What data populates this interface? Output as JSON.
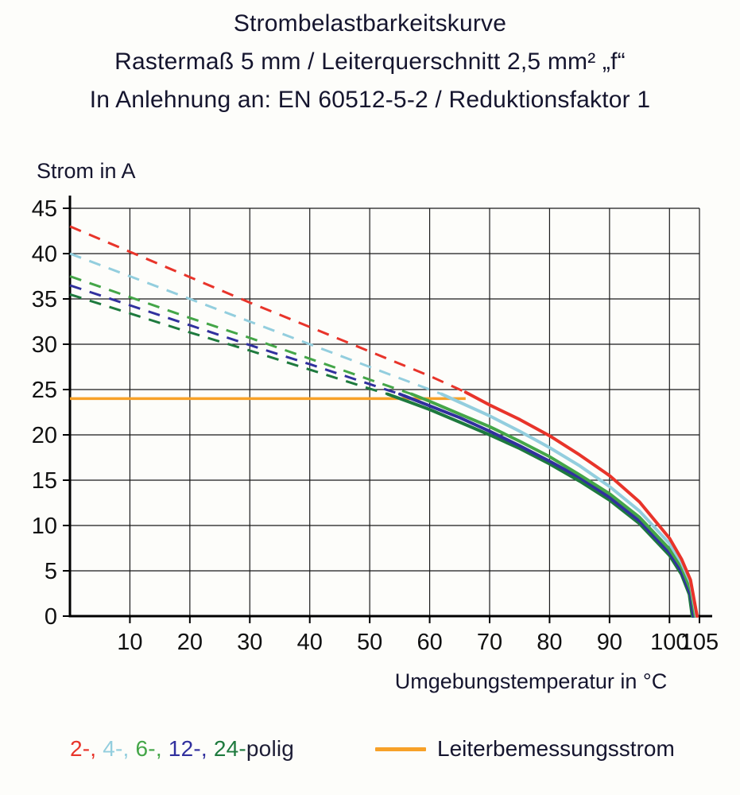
{
  "title": {
    "line1": "Strombelastbarkeitskurve",
    "line2": "Rastermaß 5 mm / Leiterquerschnitt 2,5 mm² „f“",
    "line3": "In Anlehnung an: EN 60512-5-2 / Reduktionsfaktor 1"
  },
  "chart_data": {
    "type": "line",
    "title": "Strombelastbarkeitskurve",
    "ylabel": "Strom in A",
    "xlabel": "Umgebungstemperatur in °C",
    "xlim": [
      0,
      105
    ],
    "ylim": [
      0,
      45
    ],
    "xticks": [
      10,
      20,
      30,
      40,
      50,
      60,
      70,
      80,
      90,
      100,
      105
    ],
    "yticks": [
      0,
      5,
      10,
      15,
      20,
      25,
      30,
      35,
      40,
      45
    ],
    "grid": true,
    "grid_color": "#1a1a1a",
    "axis_color": "#000000",
    "rated_current": {
      "label": "Leiterbemessungsstrom",
      "value": 24,
      "x_start": 0,
      "x_end": 66,
      "color": "#F7A128"
    },
    "dash_style_note": "curve portions above rated current are dashed, below are solid",
    "series": [
      {
        "name": "2-polig",
        "color": "#E8342A",
        "dashed": [
          [
            0,
            43
          ],
          [
            10,
            40.2
          ],
          [
            20,
            37.4
          ],
          [
            30,
            34.6
          ],
          [
            40,
            31.9
          ],
          [
            50,
            29.2
          ],
          [
            60,
            26.5
          ],
          [
            66,
            24.7
          ]
        ],
        "solid": [
          [
            66,
            24.7
          ],
          [
            70,
            23.3
          ],
          [
            75,
            21.7
          ],
          [
            80,
            19.9
          ],
          [
            85,
            17.8
          ],
          [
            90,
            15.5
          ],
          [
            95,
            12.6
          ],
          [
            100,
            8.6
          ],
          [
            102,
            6.3
          ],
          [
            103.5,
            4.0
          ],
          [
            104.6,
            0
          ]
        ]
      },
      {
        "name": "4-polig",
        "color": "#93CEDE",
        "dashed": [
          [
            0,
            40
          ],
          [
            10,
            37.5
          ],
          [
            20,
            35
          ],
          [
            30,
            32.5
          ],
          [
            40,
            30
          ],
          [
            50,
            27.5
          ],
          [
            60,
            25
          ],
          [
            62,
            24.5
          ]
        ],
        "solid": [
          [
            62,
            24.5
          ],
          [
            65,
            23.6
          ],
          [
            70,
            22.1
          ],
          [
            75,
            20.4
          ],
          [
            80,
            18.6
          ],
          [
            85,
            16.6
          ],
          [
            90,
            14.3
          ],
          [
            95,
            11.6
          ],
          [
            100,
            8.0
          ],
          [
            102,
            5.9
          ],
          [
            103.5,
            3.7
          ],
          [
            104.5,
            0
          ]
        ]
      },
      {
        "name": "6-polig",
        "color": "#44A648",
        "dashed": [
          [
            0,
            37.5
          ],
          [
            10,
            35.2
          ],
          [
            20,
            32.9
          ],
          [
            30,
            30.7
          ],
          [
            40,
            28.4
          ],
          [
            50,
            26.1
          ],
          [
            57,
            24.5
          ]
        ],
        "solid": [
          [
            57,
            24.5
          ],
          [
            60,
            23.7
          ],
          [
            65,
            22.3
          ],
          [
            70,
            20.9
          ],
          [
            75,
            19.3
          ],
          [
            80,
            17.6
          ],
          [
            85,
            15.6
          ],
          [
            90,
            13.5
          ],
          [
            95,
            10.9
          ],
          [
            100,
            7.4
          ],
          [
            102,
            5.4
          ],
          [
            103.6,
            2.8
          ],
          [
            104.3,
            0
          ]
        ]
      },
      {
        "name": "12-polig",
        "color": "#31309E",
        "dashed": [
          [
            0,
            36.5
          ],
          [
            10,
            34.3
          ],
          [
            20,
            32.1
          ],
          [
            30,
            29.9
          ],
          [
            40,
            27.8
          ],
          [
            50,
            25.6
          ],
          [
            55,
            24.5
          ]
        ],
        "solid": [
          [
            55,
            24.5
          ],
          [
            60,
            23.2
          ],
          [
            65,
            21.9
          ],
          [
            70,
            20.4
          ],
          [
            75,
            18.8
          ],
          [
            80,
            17.1
          ],
          [
            85,
            15.3
          ],
          [
            90,
            13.1
          ],
          [
            95,
            10.5
          ],
          [
            100,
            7.0
          ],
          [
            102,
            4.9
          ],
          [
            103.5,
            2.4
          ],
          [
            104,
            0
          ]
        ]
      },
      {
        "name": "24-polig",
        "color": "#1E7A3E",
        "dashed": [
          [
            0,
            35.5
          ],
          [
            10,
            33.4
          ],
          [
            20,
            31.3
          ],
          [
            30,
            29.3
          ],
          [
            40,
            27.2
          ],
          [
            50,
            25.1
          ],
          [
            53,
            24.5
          ]
        ],
        "solid": [
          [
            53,
            24.5
          ],
          [
            60,
            22.8
          ],
          [
            65,
            21.4
          ],
          [
            70,
            20.0
          ],
          [
            75,
            18.5
          ],
          [
            80,
            16.8
          ],
          [
            85,
            14.9
          ],
          [
            90,
            12.8
          ],
          [
            95,
            10.2
          ],
          [
            100,
            6.7
          ],
          [
            102,
            4.6
          ],
          [
            103.3,
            2.4
          ],
          [
            103.8,
            0
          ]
        ]
      }
    ],
    "legend_position": "bottom"
  },
  "legend": {
    "poles": [
      {
        "text": "2-, ",
        "color": "#E8342A"
      },
      {
        "text": "4-, ",
        "color": "#93CEDE"
      },
      {
        "text": "6-, ",
        "color": "#44A648"
      },
      {
        "text": "12-, ",
        "color": "#31309E"
      },
      {
        "text": "24-",
        "color": "#1E7A3E"
      },
      {
        "text": "polig",
        "color": "#1D1D35"
      }
    ],
    "rated_label": "Leiterbemessungsstrom"
  },
  "colors": {
    "text": "#15152E",
    "background": "#FDFDFA"
  }
}
